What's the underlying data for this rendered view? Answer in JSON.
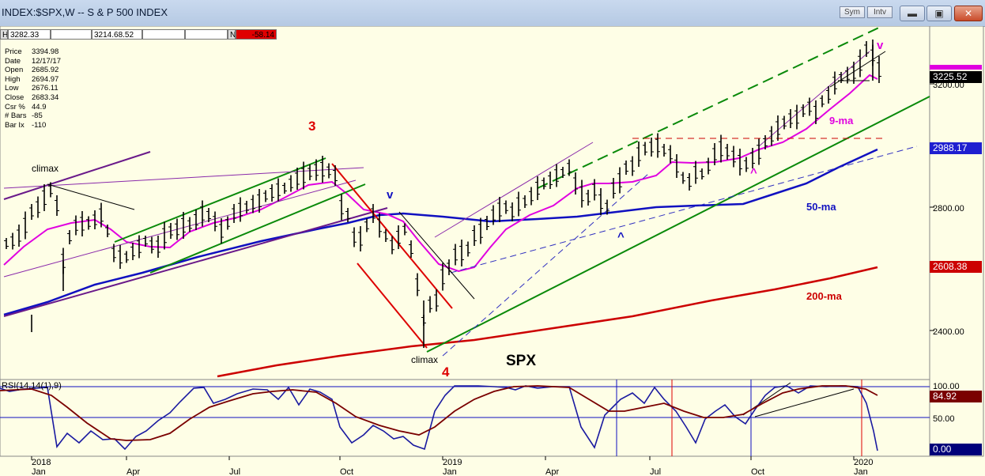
{
  "window": {
    "title": "INDEX:$SPX,W -- S & P 500 INDEX",
    "sym_label": "Sym",
    "intv_label": "Intv",
    "minimize_icon": "minimize-icon",
    "maximize_icon": "restore-icon",
    "close_icon": "close-icon"
  },
  "quote_bar": {
    "h_label": "H",
    "high": "3282.33",
    "low_prefix": "L",
    "low": "3214.68.52",
    "n_label": "N",
    "net": "-58.14"
  },
  "info_panel": [
    {
      "key": "Price",
      "value": "3394.98"
    },
    {
      "key": "Date",
      "value": "12/17/17"
    },
    {
      "key": "Open",
      "value": "2685.92"
    },
    {
      "key": "High",
      "value": "2694.97"
    },
    {
      "key": "Low",
      "value": "2676.11"
    },
    {
      "key": "Close",
      "value": "2683.34"
    },
    {
      "key": "Csr %",
      "value": "44.9"
    },
    {
      "key": "# Bars",
      "value": "-85"
    },
    {
      "key": "Bar Ix",
      "value": "-110"
    }
  ],
  "annotations": {
    "climax_top": "climax",
    "climax_bottom": "climax",
    "wave_3": "3",
    "wave_4": "4",
    "v_mid": "v",
    "v_right": "v",
    "caret_1": "^",
    "caret_2": "^",
    "spx": "SPX",
    "ma9": "9-ma",
    "ma50": "50-ma",
    "ma200": "200-ma"
  },
  "price_axis": {
    "ticks": [
      "3200.00",
      "2800.00",
      "2400.00"
    ],
    "highlight_labels": [
      {
        "text": "3225.52",
        "bg": "#000000",
        "fg": "#ffffff"
      },
      {
        "text": "2988.17",
        "bg": "#1f1fd0",
        "fg": "#ffffff"
      },
      {
        "text": "2608.38",
        "bg": "#cc0000",
        "fg": "#ffffff"
      }
    ]
  },
  "rsi_panel": {
    "title": "RSI(14,14(1),9)",
    "ticks": [
      "100.00",
      "50.00"
    ],
    "labels": [
      {
        "text": "84.92",
        "bg": "#7a0000",
        "fg": "#ffffff"
      },
      {
        "text": "0.00",
        "bg": "#00007a",
        "fg": "#ffffff"
      }
    ]
  },
  "time_axis": [
    {
      "year": "2018",
      "month": "Jan"
    },
    {
      "year": "",
      "month": "Apr"
    },
    {
      "year": "",
      "month": "Jul"
    },
    {
      "year": "",
      "month": "Oct"
    },
    {
      "year": "2019",
      "month": "Jan"
    },
    {
      "year": "",
      "month": "Apr"
    },
    {
      "year": "",
      "month": "Jul"
    },
    {
      "year": "",
      "month": "Oct"
    },
    {
      "year": "2020",
      "month": "Jan"
    }
  ],
  "colors": {
    "background": "#fefee6",
    "price_bars": "#000000",
    "ma9": "#e000e0",
    "ma50": "#1010c0",
    "ma200": "#cc0000",
    "channel_green": "#0a8a0a",
    "channel_purple": "#6a1a8a",
    "rsi": "#1a1aa0",
    "rsi_signal": "#7a0000"
  }
}
